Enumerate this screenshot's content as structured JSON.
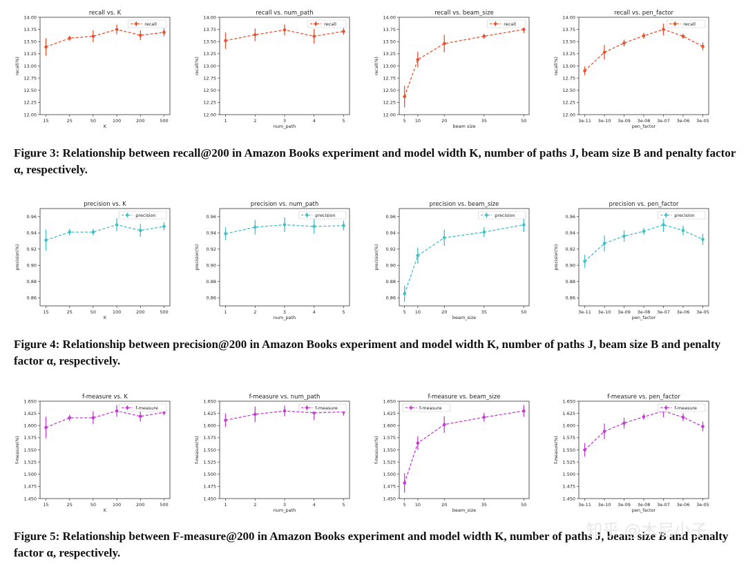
{
  "figures": [
    {
      "caption": "Figure 3: Relationship between recall@200 in Amazon Books experiment and model width K, number of paths J, beam size B and penalty factor α, respectively.",
      "color": "#e8502f",
      "charts": [
        {
          "type": "line",
          "title": "recall vs. K",
          "xlabel": "K",
          "ylabel": "recall(%)",
          "legend": "recall",
          "legend_position": "top-right",
          "categories": [
            "15",
            "25",
            "50",
            "100",
            "200",
            "500"
          ],
          "values": [
            13.39,
            13.57,
            13.61,
            13.75,
            13.63,
            13.69
          ],
          "errors": [
            0.18,
            0.05,
            0.12,
            0.1,
            0.1,
            0.08
          ],
          "ylim": [
            12.0,
            14.0
          ],
          "yticks": [
            "12.00",
            "12.25",
            "12.50",
            "12.75",
            "13.00",
            "13.25",
            "13.50",
            "13.75",
            "14.00"
          ]
        },
        {
          "type": "line",
          "title": "recall vs. num_path",
          "xlabel": "num_path",
          "ylabel": "recall(%)",
          "legend": "recall",
          "legend_position": "top-right",
          "categories": [
            "1",
            "2",
            "3",
            "4",
            "5"
          ],
          "values": [
            13.52,
            13.64,
            13.74,
            13.61,
            13.71
          ],
          "errors": [
            0.17,
            0.13,
            0.11,
            0.15,
            0.07
          ],
          "ylim": [
            12.0,
            14.0
          ],
          "yticks": [
            "12.00",
            "12.25",
            "12.50",
            "12.75",
            "13.00",
            "13.25",
            "13.50",
            "13.75",
            "14.00"
          ]
        },
        {
          "type": "line",
          "title": "recall vs. beam_size",
          "xlabel": "beam size",
          "ylabel": "recall(%)",
          "legend": "recall",
          "legend_position": "top-right",
          "x": [
            5,
            10,
            20,
            35,
            50
          ],
          "xlim": [
            3,
            52
          ],
          "xticks": [
            "5",
            "10",
            "20",
            "35",
            "50"
          ],
          "values": [
            12.37,
            13.13,
            13.46,
            13.61,
            13.75
          ],
          "errors": [
            0.22,
            0.16,
            0.18,
            0.05,
            0.08
          ],
          "ylim": [
            12.0,
            14.0
          ],
          "yticks": [
            "12.00",
            "12.25",
            "12.50",
            "12.75",
            "13.00",
            "13.25",
            "13.50",
            "13.75",
            "14.00"
          ]
        },
        {
          "type": "line",
          "title": "recall vs. pen_factor",
          "xlabel": "pen_factor",
          "ylabel": "recall(%)",
          "legend": "recall",
          "legend_position": "top-right",
          "categories": [
            "3e-11",
            "3e-10",
            "3e-09",
            "3e-08",
            "3e-07",
            "3e-06",
            "3e-05"
          ],
          "values": [
            12.9,
            13.28,
            13.47,
            13.62,
            13.75,
            13.61,
            13.4
          ],
          "errors": [
            0.09,
            0.15,
            0.07,
            0.06,
            0.12,
            0.05,
            0.08
          ],
          "ylim": [
            12.0,
            14.0
          ],
          "yticks": [
            "12.00",
            "12.25",
            "12.50",
            "12.75",
            "13.00",
            "13.25",
            "13.50",
            "13.75",
            "14.00"
          ]
        }
      ]
    },
    {
      "caption": "Figure 4: Relationship between precision@200 in Amazon Books experiment and model width K, number of paths J, beam size B and penalty factor α, respectively.",
      "color": "#3fbfc6",
      "charts": [
        {
          "type": "line",
          "title": "precision vs. K",
          "xlabel": "K",
          "ylabel": "precision(%)",
          "legend": "precision",
          "legend_position": "top-right",
          "categories": [
            "15",
            "25",
            "50",
            "100",
            "200",
            "500"
          ],
          "values": [
            0.931,
            0.941,
            0.941,
            0.95,
            0.943,
            0.948
          ],
          "errors": [
            0.013,
            0.004,
            0.004,
            0.008,
            0.008,
            0.005
          ],
          "ylim": [
            0.85,
            0.97
          ],
          "yticks": [
            "0.86",
            "0.88",
            "0.90",
            "0.92",
            "0.94",
            "0.96"
          ]
        },
        {
          "type": "line",
          "title": "precision vs. num_path",
          "xlabel": "num_path",
          "ylabel": "precision(%)",
          "legend": "precision",
          "legend_position": "top-right",
          "categories": [
            "1",
            "2",
            "3",
            "4",
            "5"
          ],
          "values": [
            0.939,
            0.947,
            0.95,
            0.948,
            0.949
          ],
          "errors": [
            0.008,
            0.009,
            0.009,
            0.009,
            0.006
          ],
          "ylim": [
            0.85,
            0.97
          ],
          "yticks": [
            "0.86",
            "0.88",
            "0.90",
            "0.92",
            "0.94",
            "0.96"
          ]
        },
        {
          "type": "line",
          "title": "precision vs. beam_size",
          "xlabel": "beam_size",
          "ylabel": "precision(%)",
          "legend": "precision",
          "legend_position": "top-right",
          "x": [
            5,
            10,
            20,
            35,
            50
          ],
          "xlim": [
            3,
            52
          ],
          "xticks": [
            "5",
            "10",
            "20",
            "35",
            "50"
          ],
          "values": [
            0.865,
            0.912,
            0.934,
            0.941,
            0.95
          ],
          "errors": [
            0.01,
            0.01,
            0.01,
            0.006,
            0.009
          ],
          "ylim": [
            0.85,
            0.97
          ],
          "yticks": [
            "0.86",
            "0.88",
            "0.90",
            "0.92",
            "0.94",
            "0.96"
          ]
        },
        {
          "type": "line",
          "title": "precision vs. pen_factor",
          "xlabel": "pen_factor",
          "ylabel": "precision(%)",
          "legend": "precision",
          "legend_position": "top-right",
          "categories": [
            "3e-11",
            "3e-10",
            "3e-09",
            "3e-08",
            "3e-07",
            "3e-06",
            "3e-05"
          ],
          "values": [
            0.905,
            0.927,
            0.936,
            0.942,
            0.95,
            0.943,
            0.932
          ],
          "errors": [
            0.008,
            0.01,
            0.007,
            0.004,
            0.009,
            0.006,
            0.007
          ],
          "ylim": [
            0.85,
            0.97
          ],
          "yticks": [
            "0.86",
            "0.88",
            "0.90",
            "0.92",
            "0.94",
            "0.96"
          ]
        }
      ]
    },
    {
      "caption": "Figure 5: Relationship between F-measure@200 in Amazon Books experiment and model width K, number of paths J, beam size B and penalty factor α, respectively.",
      "color": "#c43ad2",
      "charts": [
        {
          "type": "line",
          "title": "f-measure vs. K",
          "xlabel": "K",
          "ylabel": "f-measure(%)",
          "legend": "f-measure",
          "legend_position": "top-right",
          "categories": [
            "15",
            "25",
            "50",
            "100",
            "200",
            "500"
          ],
          "values": [
            1.596,
            1.616,
            1.616,
            1.63,
            1.619,
            1.627
          ],
          "errors": [
            0.022,
            0.006,
            0.013,
            0.012,
            0.011,
            0.006
          ],
          "ylim": [
            1.45,
            1.65
          ],
          "yticks": [
            "1.450",
            "1.475",
            "1.500",
            "1.525",
            "1.550",
            "1.575",
            "1.600",
            "1.625",
            "1.650"
          ]
        },
        {
          "type": "line",
          "title": "f-measure vs. num_path",
          "xlabel": "num_path",
          "ylabel": "f-measure(%)",
          "legend": "f-measure",
          "legend_position": "top-right",
          "categories": [
            "1",
            "2",
            "3",
            "4",
            "5"
          ],
          "values": [
            1.611,
            1.623,
            1.63,
            1.626,
            1.628
          ],
          "errors": [
            0.014,
            0.016,
            0.011,
            0.015,
            0.008
          ],
          "ylim": [
            1.45,
            1.65
          ],
          "yticks": [
            "1.450",
            "1.475",
            "1.500",
            "1.525",
            "1.550",
            "1.575",
            "1.600",
            "1.625",
            "1.650"
          ]
        },
        {
          "type": "line",
          "title": "f-measure vs. beam_size",
          "xlabel": "beam_size",
          "ylabel": "f-measure(%)",
          "legend": "f-measure",
          "legend_position": "top-left",
          "x": [
            5,
            10,
            20,
            35,
            50
          ],
          "xlim": [
            3,
            52
          ],
          "xticks": [
            "5",
            "10",
            "20",
            "35",
            "50"
          ],
          "values": [
            1.482,
            1.564,
            1.602,
            1.617,
            1.63
          ],
          "errors": [
            0.02,
            0.014,
            0.017,
            0.009,
            0.012
          ],
          "ylim": [
            1.45,
            1.65
          ],
          "yticks": [
            "1.450",
            "1.475",
            "1.500",
            "1.525",
            "1.550",
            "1.575",
            "1.600",
            "1.625",
            "1.650"
          ]
        },
        {
          "type": "line",
          "title": "f-measure vs. pen_factor",
          "xlabel": "pen_factor",
          "ylabel": "f-measure(%)",
          "legend": "f-measure",
          "legend_position": "top-right",
          "categories": [
            "3e-11",
            "3e-10",
            "3e-09",
            "3e-08",
            "3e-07",
            "3e-06",
            "3e-05"
          ],
          "values": [
            1.55,
            1.588,
            1.605,
            1.618,
            1.63,
            1.617,
            1.598
          ],
          "errors": [
            0.014,
            0.016,
            0.011,
            0.006,
            0.013,
            0.008,
            0.01
          ],
          "ylim": [
            1.45,
            1.65
          ],
          "yticks": [
            "1.450",
            "1.475",
            "1.500",
            "1.525",
            "1.550",
            "1.575",
            "1.600",
            "1.625",
            "1.650"
          ]
        }
      ]
    }
  ],
  "watermark": "知乎 @木尼小子"
}
